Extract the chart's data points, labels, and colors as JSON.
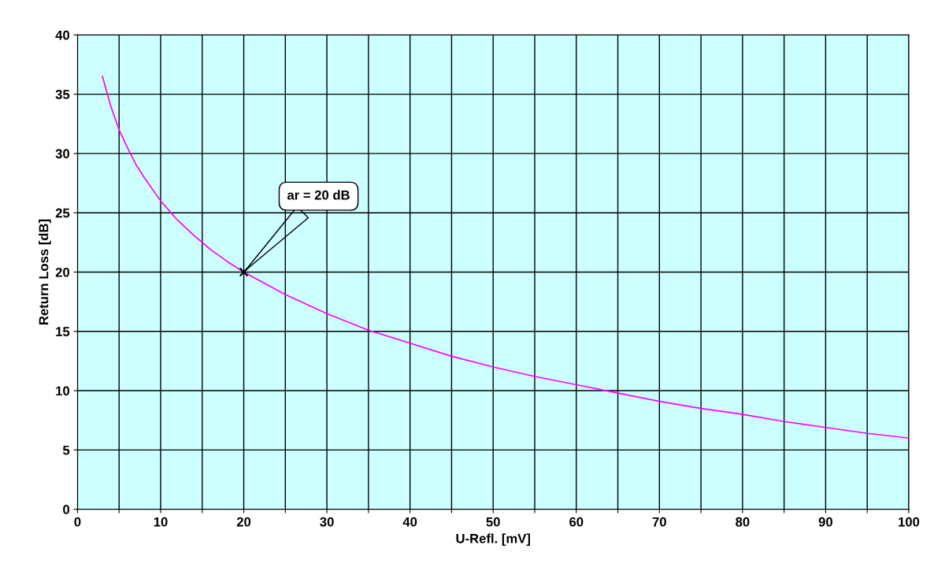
{
  "chart_data": {
    "type": "line",
    "xlabel": "U-Refl. [mV]",
    "ylabel": "Return Loss [dB]",
    "xlim": [
      0,
      100
    ],
    "ylim": [
      0,
      40
    ],
    "xticks": [
      0,
      {
        "value": 5,
        "label": null
      },
      10,
      {
        "value": 15,
        "label": null
      },
      20,
      {
        "value": 25,
        "label": null
      },
      30,
      {
        "value": 35,
        "label": null
      },
      40,
      {
        "value": 45,
        "label": null
      },
      50,
      {
        "value": 55,
        "label": null
      },
      60,
      {
        "value": 65,
        "label": null
      },
      70,
      {
        "value": 75,
        "label": null
      },
      80,
      {
        "value": 85,
        "label": null
      },
      90,
      {
        "value": 95,
        "label": null
      },
      100
    ],
    "yticks": [
      0,
      5,
      10,
      15,
      20,
      25,
      30,
      35,
      40
    ],
    "grid": true,
    "marker": "none",
    "line_style": "solid",
    "series": [
      {
        "color": "#ff00ff",
        "x": [
          3,
          4,
          5,
          6,
          7,
          8,
          10,
          12,
          14,
          16,
          18,
          20,
          25,
          30,
          35,
          40,
          45,
          50,
          55,
          60,
          65,
          70,
          75,
          80,
          85,
          90,
          95,
          100
        ],
        "values": [
          36.5,
          34.0,
          32.0,
          30.5,
          29.1,
          28.0,
          26.0,
          24.4,
          23.1,
          21.9,
          20.9,
          20.0,
          18.1,
          16.5,
          15.1,
          14.0,
          12.9,
          12.0,
          11.2,
          10.5,
          9.8,
          9.1,
          8.5,
          8.0,
          7.4,
          6.9,
          6.4,
          6.0
        ]
      },
      {
        "type": "scatter",
        "color": "#000000",
        "marker": "cross",
        "x": [
          20
        ],
        "values": [
          20
        ]
      }
    ],
    "annotations": [
      "ar = 20 dB"
    ]
  }
}
